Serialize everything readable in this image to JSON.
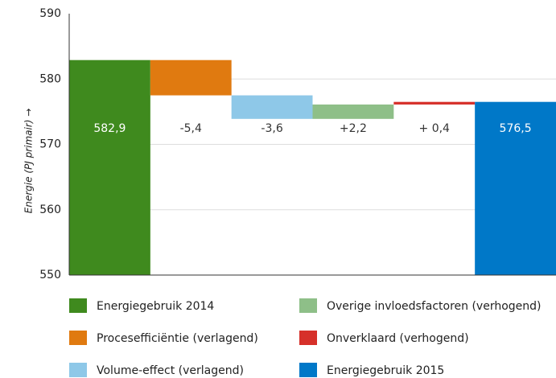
{
  "chart_data": {
    "type": "waterfall",
    "y_label": "Energie (PJ primair) →",
    "categories": [
      "Energiegebruik 2014",
      "Procesefficiëntie (verlagend)",
      "Volume-effect (verlagend)",
      "Overige invloedsfactoren (verhogend)",
      "Onverklaard (verhogend)",
      "Energiegebruik 2015"
    ],
    "values": [
      582.9,
      -5.4,
      -3.6,
      2.2,
      0.4,
      576.5
    ],
    "value_labels": [
      "582,9",
      "-5,4",
      "-3,6",
      "+2,2",
      "+ 0,4",
      "576,5"
    ],
    "colors": [
      "#3f8a1e",
      "#e07a10",
      "#8ec8e8",
      "#8ebf88",
      "#d6302a",
      "#0078c8"
    ],
    "ylim": [
      550,
      590
    ],
    "yticks": [
      550,
      560,
      570,
      580,
      590
    ],
    "grid": true
  }
}
